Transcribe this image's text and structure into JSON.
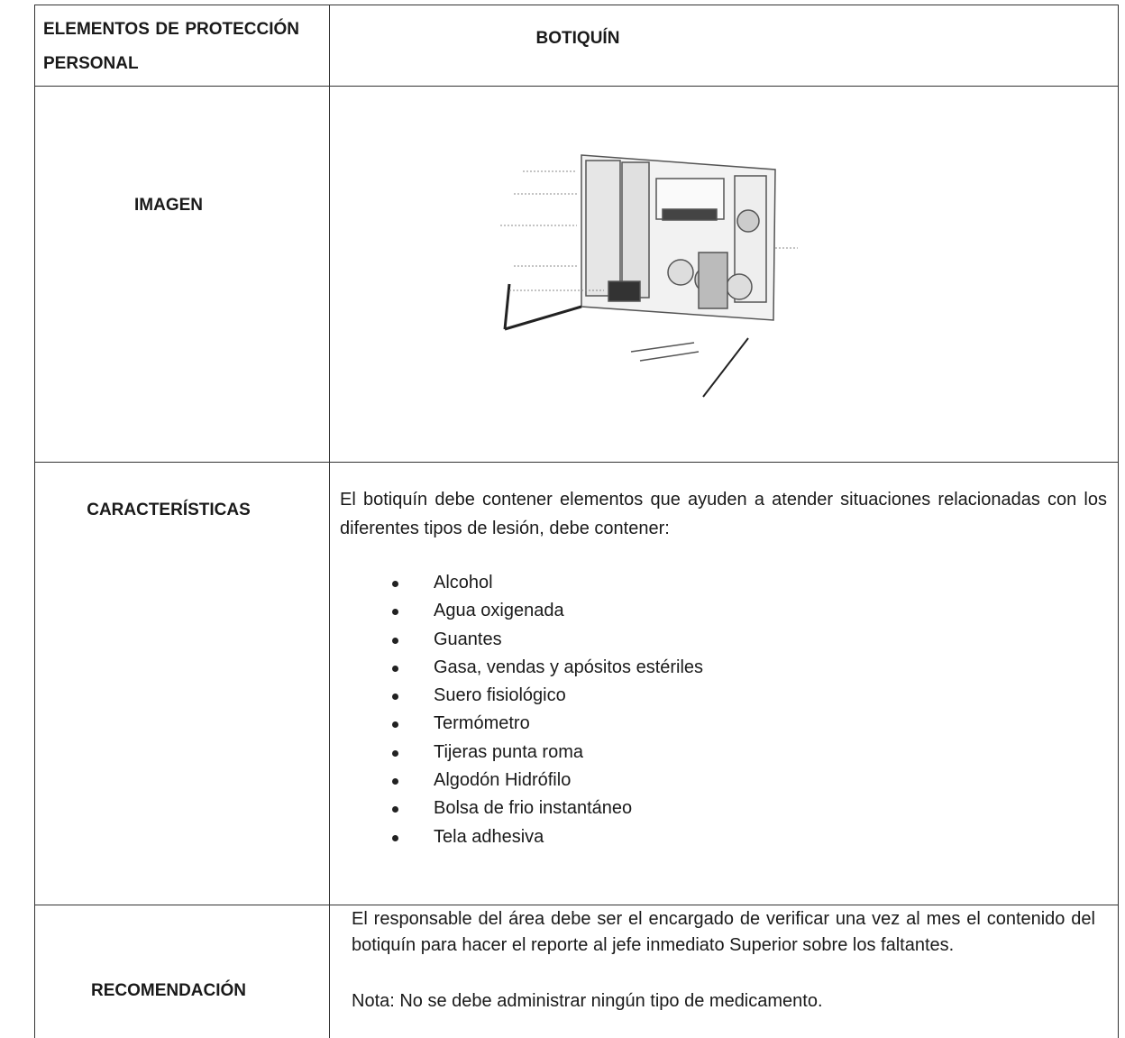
{
  "table": {
    "header": [
      "ELEMENTOS DE PROTECCIÓN PERSONAL",
      "BOTIQUÍN"
    ],
    "rows": [
      {
        "label": "IMAGEN"
      },
      {
        "label": "CARACTERÍSTICAS",
        "text": "El botiquín debe contener elementos que ayuden a atender situaciones relacionadas con los diferentes tipos de lesión, debe contener:",
        "items": [
          "Alcohol",
          "Agua oxigenada",
          "Guantes",
          "Gasa, vendas y apósitos estériles",
          "Suero fisiológico",
          "Termómetro",
          "Tijeras punta roma",
          "Algodón Hidrófilo",
          "Bolsa de frio instantáneo",
          "Tela adhesiva"
        ]
      },
      {
        "label": "RECOMENDACIÓN",
        "text": "El responsable del área debe ser el encargado de verificar una vez al mes el contenido del botiquín para hacer el reporte al jefe inmediato Superior sobre los faltantes.",
        "note": "Nota: No se debe administrar ningún tipo de medicamento."
      }
    ]
  }
}
